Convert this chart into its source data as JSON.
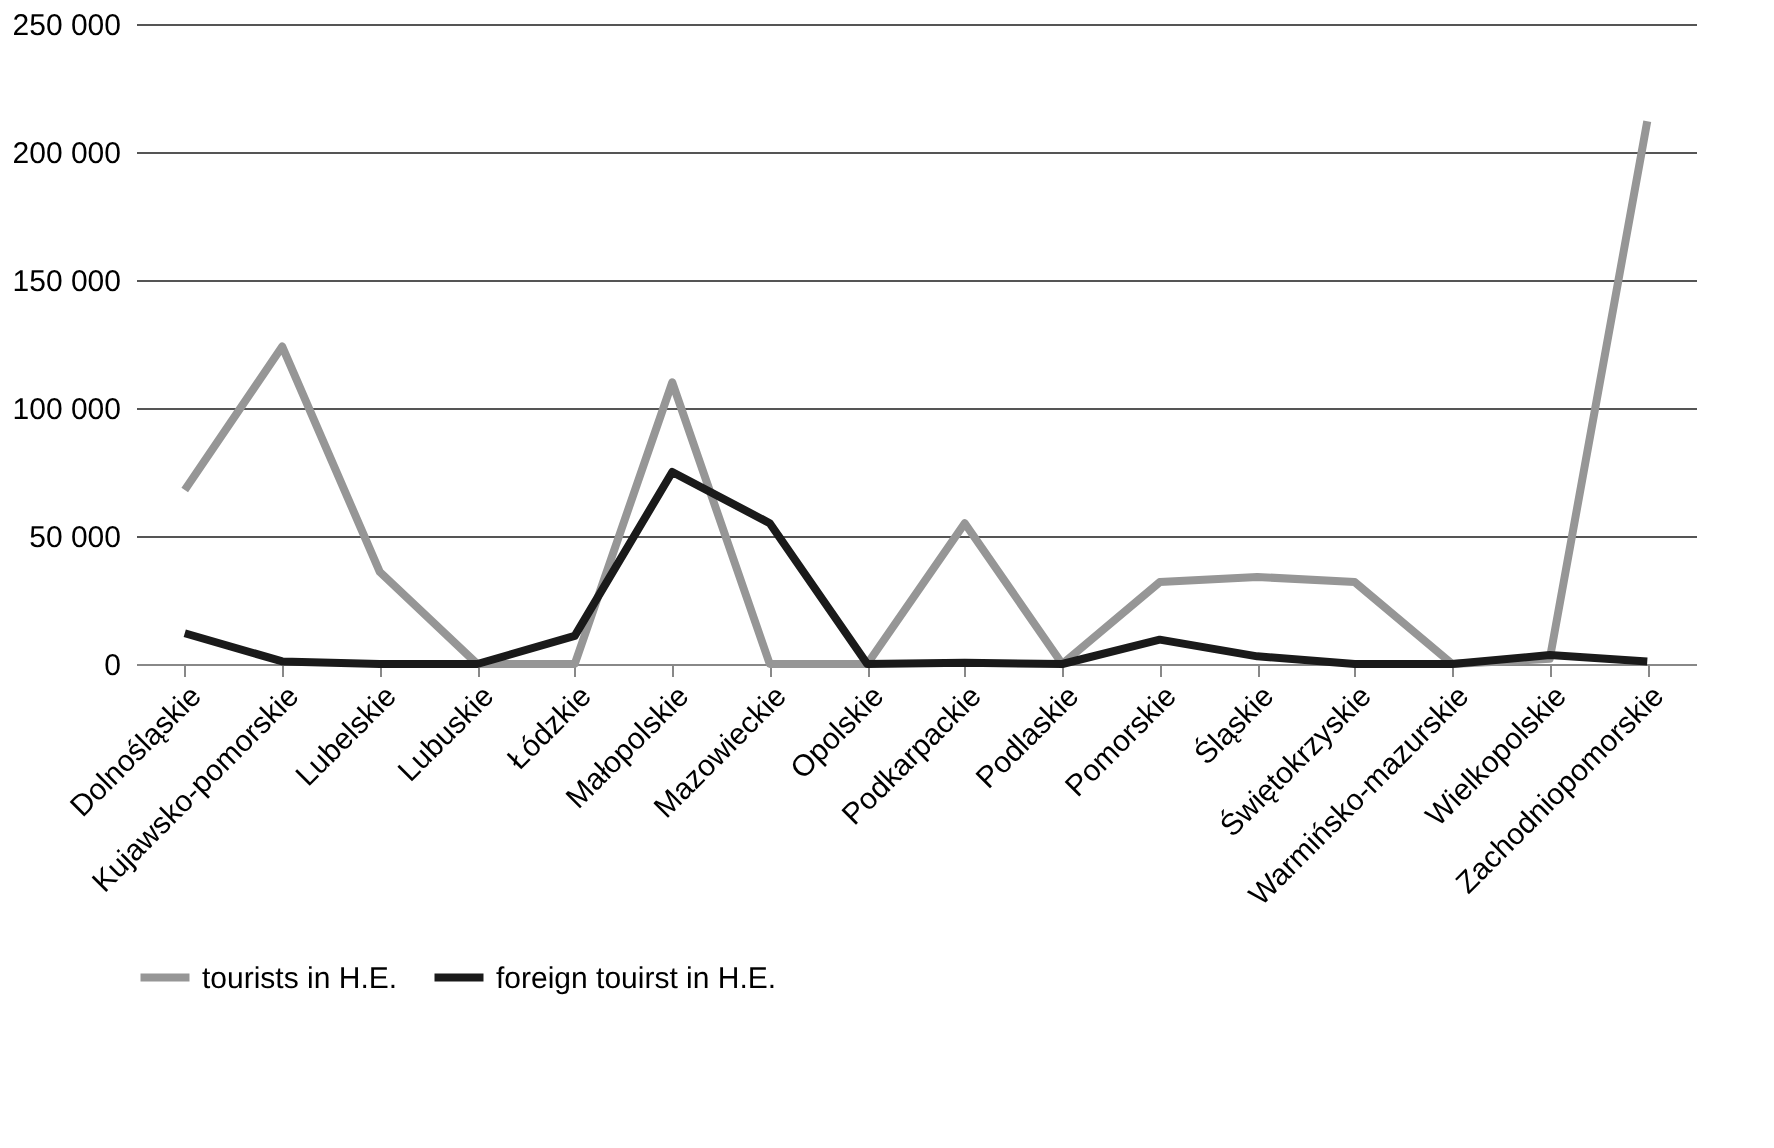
{
  "chart_data": {
    "type": "line",
    "categories": [
      "Dolnośląskie",
      "Kujawsko-pomorskie",
      "Lubelskie",
      "Lubuskie",
      "Łódzkie",
      "Małopolskie",
      "Mazowieckie",
      "Opolskie",
      "Podkarpackie",
      "Podlaskie",
      "Pomorskie",
      "Śląskie",
      "Świętokrzyskie",
      "Warmińsko-mazurskie",
      "Wielkopolskie",
      "Zachodniopomorskie"
    ],
    "series": [
      {
        "name": "tourists in H.E.",
        "color": "#969696",
        "values": [
          68000,
          124000,
          36000,
          0,
          0,
          110000,
          0,
          0,
          55000,
          0,
          32000,
          34000,
          32000,
          0,
          2000,
          212000
        ]
      },
      {
        "name": "foreign touirst in H.E.",
        "color": "#1a1a1a",
        "values": [
          12000,
          1000,
          0,
          0,
          11000,
          75000,
          55000,
          0,
          500,
          0,
          9500,
          3000,
          0,
          0,
          3500,
          1000
        ]
      }
    ],
    "ylim": [
      0,
      250000
    ],
    "yticks": [
      {
        "value": 0,
        "label": "0"
      },
      {
        "value": 50000,
        "label": "50 000"
      },
      {
        "value": 100000,
        "label": "100 000"
      },
      {
        "value": 150000,
        "label": "150 000"
      },
      {
        "value": 200000,
        "label": "200 000"
      },
      {
        "value": 250000,
        "label": "250 000"
      }
    ],
    "grid": "y",
    "legend": "bottom",
    "marker": "none",
    "line_style": "solid"
  }
}
